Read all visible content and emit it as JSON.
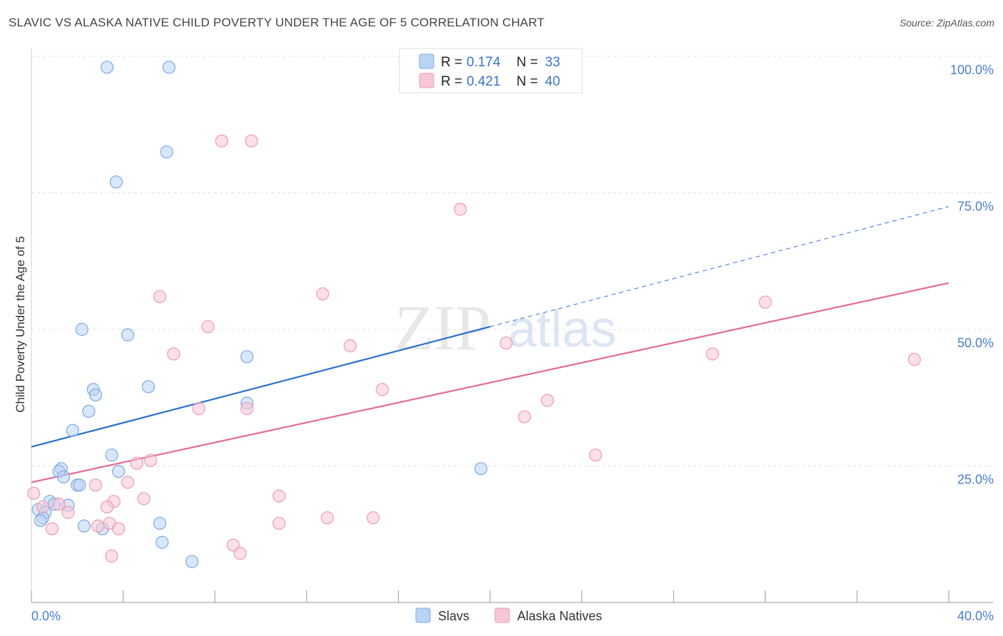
{
  "header": {
    "title": "SLAVIC VS ALASKA NATIVE CHILD POVERTY UNDER THE AGE OF 5 CORRELATION CHART",
    "source": "Source: ZipAtlas.com"
  },
  "watermark": {
    "zip": "ZIP",
    "atlas": "atlas"
  },
  "colors": {
    "slavs_fill": "#b9d3f5",
    "slavs_stroke": "#7ea9e2",
    "slavs_line": "#2a6fcf",
    "alaska_fill": "#f8c7d5",
    "alaska_stroke": "#ec9bb3",
    "alaska_line": "#e36a96"
  },
  "chart_data": {
    "type": "scatter",
    "title": "SLAVIC VS ALASKA NATIVE CHILD POVERTY UNDER THE AGE OF 5 CORRELATION CHART",
    "xlabel": "",
    "ylabel": "Child Poverty Under the Age of 5",
    "xlim": [
      0,
      40
    ],
    "ylim": [
      0,
      100
    ],
    "x_tick_labels": {
      "left": "0.0%",
      "right": "40.0%"
    },
    "y_ticks": [
      {
        "value": 25,
        "label": "25.0%"
      },
      {
        "value": 50,
        "label": "50.0%"
      },
      {
        "value": 75,
        "label": "75.0%"
      },
      {
        "value": 100,
        "label": "100.0%"
      }
    ],
    "legend": {
      "placement": "top-center",
      "entries": [
        {
          "r_label": "R =",
          "r_value": "0.174",
          "n_label": "N =",
          "n_value": "33"
        },
        {
          "r_label": "R =",
          "r_value": "0.421",
          "n_label": "N =",
          "n_value": "40"
        }
      ]
    },
    "bottom_legend": [
      "Slavs",
      "Alaska Natives"
    ],
    "series": [
      {
        "name": "Slavs",
        "r": 0.174,
        "n": 33,
        "trend": {
          "x0": 0,
          "y0": 28.5,
          "x1": 20,
          "y1": 50.5,
          "dashed_to_x": 40,
          "dashed_to_y": 72.5
        },
        "points": [
          [
            3.3,
            98
          ],
          [
            6.0,
            98
          ],
          [
            5.9,
            82.5
          ],
          [
            3.7,
            77
          ],
          [
            2.2,
            50
          ],
          [
            4.2,
            49
          ],
          [
            9.4,
            45
          ],
          [
            2.7,
            39
          ],
          [
            2.8,
            38
          ],
          [
            5.1,
            39.5
          ],
          [
            2.5,
            35
          ],
          [
            1.8,
            31.5
          ],
          [
            9.4,
            36.5
          ],
          [
            3.5,
            27
          ],
          [
            1.3,
            24.5
          ],
          [
            1.2,
            24
          ],
          [
            1.4,
            23
          ],
          [
            3.8,
            24
          ],
          [
            2.0,
            21.5
          ],
          [
            2.1,
            21.5
          ],
          [
            0.8,
            18.5
          ],
          [
            1.0,
            18
          ],
          [
            1.6,
            17.8
          ],
          [
            0.3,
            17
          ],
          [
            0.6,
            16.5
          ],
          [
            0.5,
            15.5
          ],
          [
            0.4,
            15
          ],
          [
            2.3,
            14
          ],
          [
            3.1,
            13.5
          ],
          [
            5.6,
            14.5
          ],
          [
            5.7,
            11
          ],
          [
            7.0,
            7.5
          ],
          [
            19.6,
            24.5
          ]
        ]
      },
      {
        "name": "Alaska Natives",
        "r": 0.421,
        "n": 40,
        "trend": {
          "x0": 0,
          "y0": 22,
          "x1": 40,
          "y1": 58.5
        },
        "points": [
          [
            8.3,
            84.5
          ],
          [
            9.6,
            84.5
          ],
          [
            18.7,
            72
          ],
          [
            5.6,
            56
          ],
          [
            12.7,
            56.5
          ],
          [
            7.7,
            50.5
          ],
          [
            13.9,
            47
          ],
          [
            20.7,
            47.5
          ],
          [
            32.0,
            55
          ],
          [
            6.2,
            45.5
          ],
          [
            29.7,
            45.5
          ],
          [
            38.5,
            44.5
          ],
          [
            15.3,
            39
          ],
          [
            22.5,
            37
          ],
          [
            7.3,
            35.5
          ],
          [
            9.4,
            35.5
          ],
          [
            21.5,
            34
          ],
          [
            24.6,
            27
          ],
          [
            5.2,
            26
          ],
          [
            4.6,
            25.5
          ],
          [
            4.2,
            22
          ],
          [
            2.8,
            21.5
          ],
          [
            0.1,
            20
          ],
          [
            4.9,
            19
          ],
          [
            10.8,
            19.5
          ],
          [
            3.6,
            18.5
          ],
          [
            3.3,
            17.5
          ],
          [
            1.2,
            18
          ],
          [
            0.5,
            17.5
          ],
          [
            1.6,
            16.5
          ],
          [
            12.9,
            15.5
          ],
          [
            14.9,
            15.5
          ],
          [
            10.8,
            14.5
          ],
          [
            3.4,
            14.5
          ],
          [
            2.9,
            14
          ],
          [
            3.8,
            13.5
          ],
          [
            0.9,
            13.5
          ],
          [
            8.8,
            10.5
          ],
          [
            9.1,
            9
          ],
          [
            3.5,
            8.5
          ]
        ]
      }
    ]
  }
}
